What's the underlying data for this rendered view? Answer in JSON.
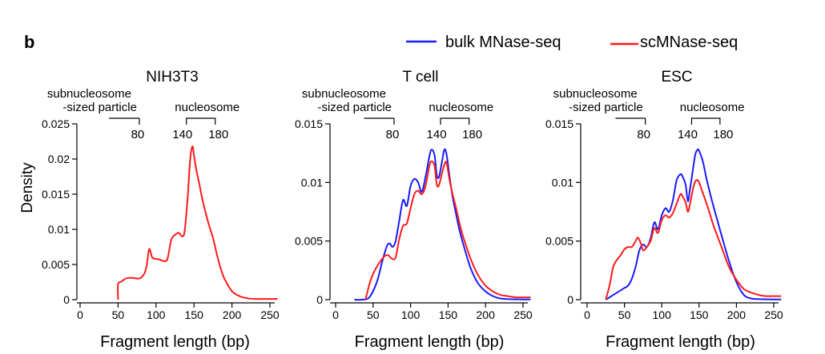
{
  "figure": {
    "panel_letter": "b",
    "ylabel": "Density",
    "legend": {
      "placement": "top-right",
      "entries": [
        {
          "label": "bulk MNase-seq",
          "color": "#1a1aff"
        },
        {
          "label": "scMNase-seq",
          "color": "#ff1a1a"
        }
      ]
    }
  },
  "chart_data": [
    {
      "type": "line",
      "title": "NIH3T3",
      "xlabel": "Fragment length (bp)",
      "ylabel": "Density",
      "xlim": [
        0,
        260
      ],
      "ylim": [
        0,
        0.025
      ],
      "x_ticks": [
        0,
        50,
        100,
        150,
        200,
        250
      ],
      "y_ticks": [
        0,
        0.005,
        0.01,
        0.015,
        0.02,
        0.025
      ],
      "y_tick_labels": [
        "0",
        "0.005",
        "0.01",
        "0.015",
        "0.02",
        "0.025"
      ],
      "annotations": {
        "sub_label": [
          "subnucleosome",
          "-sized particle"
        ],
        "sub_bracket_end": "80",
        "nuc_label": "nucleosome",
        "nuc_start": "140",
        "nuc_end": "180"
      },
      "series": [
        {
          "name": "scMNase-seq",
          "color": "#ff1a1a",
          "x": [
            50,
            50,
            55,
            60,
            65,
            70,
            75,
            80,
            85,
            88,
            91,
            95,
            100,
            105,
            110,
            115,
            120,
            125,
            130,
            135,
            138,
            142,
            145,
            148,
            150,
            153,
            157,
            160,
            165,
            170,
            175,
            180,
            185,
            190,
            200,
            210,
            220,
            230,
            240,
            250,
            260
          ],
          "y": [
            0,
            0.0022,
            0.0026,
            0.003,
            0.0031,
            0.0031,
            0.003,
            0.0031,
            0.0038,
            0.005,
            0.0072,
            0.006,
            0.0058,
            0.0057,
            0.0055,
            0.0058,
            0.0085,
            0.0092,
            0.0095,
            0.009,
            0.01,
            0.015,
            0.02,
            0.0218,
            0.0205,
            0.0185,
            0.0165,
            0.0148,
            0.0125,
            0.0105,
            0.0088,
            0.0065,
            0.0045,
            0.003,
            0.0012,
            0.0005,
            0.0002,
            0.0001,
            0.0001,
            0.0001,
            0.0001
          ]
        }
      ]
    },
    {
      "type": "line",
      "title": "T cell",
      "xlabel": "Fragment length (bp)",
      "ylabel": "",
      "xlim": [
        0,
        260
      ],
      "ylim": [
        0,
        0.015
      ],
      "x_ticks": [
        0,
        50,
        100,
        150,
        200,
        250
      ],
      "y_ticks": [
        0,
        0.005,
        0.01,
        0.015
      ],
      "y_tick_labels": [
        "0",
        "0.005",
        "0.01",
        "0.015"
      ],
      "annotations": {
        "sub_label": [
          "subnucleosome",
          "-sized particle"
        ],
        "sub_bracket_end": "80",
        "nuc_label": "nucleosome",
        "nuc_start": "140",
        "nuc_end": "180"
      },
      "series": [
        {
          "name": "bulk MNase-seq",
          "color": "#1a1aff",
          "x": [
            25,
            35,
            45,
            55,
            62,
            68,
            72,
            76,
            80,
            85,
            90,
            95,
            100,
            105,
            110,
            115,
            120,
            125,
            128,
            132,
            135,
            138,
            142,
            145,
            148,
            152,
            156,
            160,
            165,
            170,
            180,
            190,
            200,
            210,
            220,
            230,
            240,
            250,
            260
          ],
          "y": [
            0,
            0,
            0.0002,
            0.0015,
            0.0032,
            0.0045,
            0.0048,
            0.0045,
            0.005,
            0.0068,
            0.0085,
            0.008,
            0.0097,
            0.0103,
            0.01,
            0.0092,
            0.0105,
            0.0122,
            0.0128,
            0.0123,
            0.0106,
            0.0105,
            0.0118,
            0.0128,
            0.0124,
            0.0105,
            0.0088,
            0.0075,
            0.006,
            0.0048,
            0.0027,
            0.0014,
            0.0007,
            0.0003,
            0.0001,
            5e-05,
            3e-05,
            2e-05,
            2e-05
          ]
        },
        {
          "name": "scMNase-seq",
          "color": "#ff1a1a",
          "x": [
            40,
            45,
            50,
            55,
            60,
            65,
            70,
            75,
            80,
            85,
            90,
            95,
            100,
            105,
            110,
            115,
            120,
            125,
            128,
            132,
            135,
            138,
            142,
            145,
            148,
            152,
            156,
            160,
            165,
            170,
            180,
            190,
            200,
            210,
            220,
            230,
            240,
            250,
            260
          ],
          "y": [
            0,
            0.0013,
            0.0022,
            0.0028,
            0.0033,
            0.0037,
            0.0038,
            0.0035,
            0.0036,
            0.0052,
            0.0063,
            0.0065,
            0.0078,
            0.009,
            0.0093,
            0.009,
            0.0097,
            0.0114,
            0.0118,
            0.0114,
            0.0098,
            0.0098,
            0.0108,
            0.0115,
            0.0117,
            0.0102,
            0.009,
            0.008,
            0.0066,
            0.0054,
            0.0035,
            0.0021,
            0.0012,
            0.0007,
            0.0004,
            0.0003,
            0.0002,
            0.0002,
            0.0002
          ]
        }
      ]
    },
    {
      "type": "line",
      "title": "ESC",
      "xlabel": "Fragment length (bp)",
      "ylabel": "",
      "xlim": [
        0,
        260
      ],
      "ylim": [
        0,
        0.015
      ],
      "x_ticks": [
        0,
        50,
        100,
        150,
        200,
        250
      ],
      "y_ticks": [
        0,
        0.005,
        0.01,
        0.015
      ],
      "y_tick_labels": [
        "0",
        "0.005",
        "0.01",
        "0.015"
      ],
      "annotations": {
        "sub_label": [
          "subnucleosome",
          "-sized particle"
        ],
        "sub_bracket_end": "80",
        "nuc_label": "nucleosome",
        "nuc_start": "140",
        "nuc_end": "180"
      },
      "series": [
        {
          "name": "bulk MNase-seq",
          "color": "#1a1aff",
          "x": [
            25,
            30,
            35,
            40,
            45,
            50,
            55,
            60,
            65,
            70,
            75,
            80,
            85,
            90,
            95,
            100,
            105,
            110,
            115,
            120,
            125,
            128,
            132,
            135,
            138,
            142,
            145,
            148,
            150,
            155,
            160,
            165,
            170,
            180,
            190,
            200,
            210,
            220,
            230,
            240,
            250,
            260
          ],
          "y": [
            0,
            0.0002,
            0.0004,
            0.0006,
            0.0008,
            0.001,
            0.0012,
            0.0018,
            0.0028,
            0.0042,
            0.0047,
            0.0045,
            0.0052,
            0.0066,
            0.006,
            0.0072,
            0.0078,
            0.0075,
            0.0085,
            0.0102,
            0.0107,
            0.0105,
            0.0098,
            0.0084,
            0.0095,
            0.0112,
            0.0124,
            0.0128,
            0.0127,
            0.0118,
            0.0103,
            0.009,
            0.0078,
            0.0055,
            0.0033,
            0.0015,
            0.0004,
            0.0001,
            5e-05,
            3e-05,
            2e-05,
            2e-05
          ]
        },
        {
          "name": "scMNase-seq",
          "color": "#ff1a1a",
          "x": [
            25,
            30,
            35,
            40,
            45,
            50,
            55,
            60,
            65,
            68,
            72,
            75,
            80,
            85,
            90,
            95,
            100,
            105,
            110,
            115,
            120,
            125,
            128,
            132,
            135,
            138,
            142,
            145,
            148,
            150,
            155,
            160,
            165,
            170,
            180,
            190,
            200,
            210,
            220,
            230,
            240,
            250,
            260
          ],
          "y": [
            0,
            0.0012,
            0.0028,
            0.0034,
            0.0038,
            0.0043,
            0.0045,
            0.0045,
            0.005,
            0.0053,
            0.0048,
            0.0042,
            0.0045,
            0.005,
            0.0061,
            0.0057,
            0.0068,
            0.0072,
            0.007,
            0.0074,
            0.0082,
            0.009,
            0.0088,
            0.0083,
            0.0075,
            0.0082,
            0.0095,
            0.0101,
            0.0102,
            0.01,
            0.0091,
            0.0082,
            0.0072,
            0.0062,
            0.0045,
            0.0028,
            0.0017,
            0.0009,
            0.0006,
            0.0004,
            0.0003,
            0.0003,
            0.0003
          ]
        }
      ]
    }
  ]
}
